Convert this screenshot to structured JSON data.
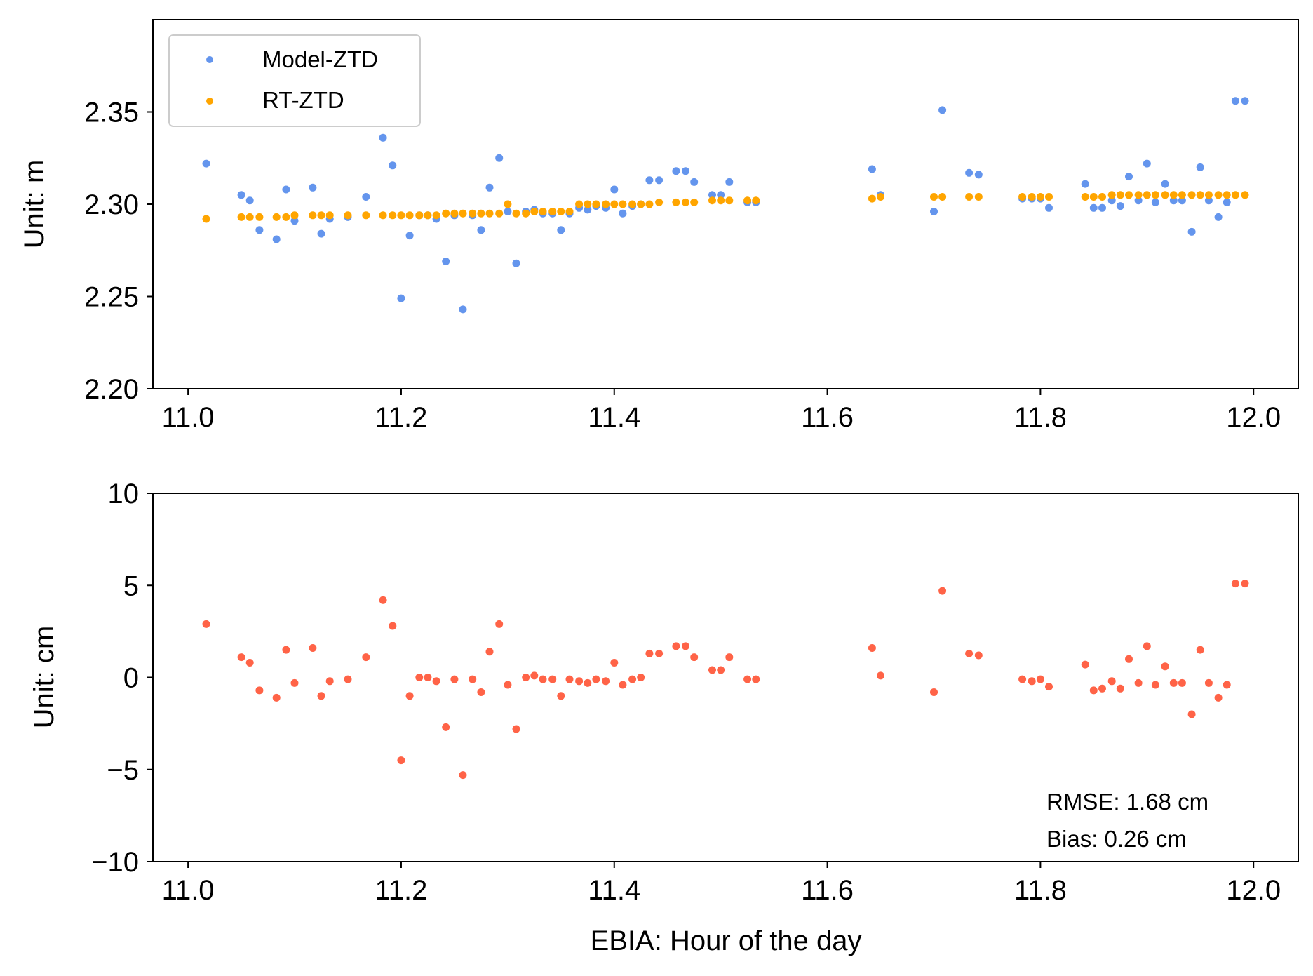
{
  "colors": {
    "model_ztd": "#6495ED",
    "rt_ztd": "#FFA500",
    "residual": "#FF6347",
    "axis": "#000000",
    "legend_border": "#cccccc"
  },
  "chart_data": [
    {
      "type": "scatter",
      "xlabel": "",
      "ylabel": "Unit: m",
      "xlim": [
        10.967,
        12.042
      ],
      "ylim": [
        2.2,
        2.4
      ],
      "x_ticks": [
        11.0,
        11.2,
        11.4,
        11.6,
        11.8,
        12.0
      ],
      "x_tick_labels": [
        "11.0",
        "11.2",
        "11.4",
        "11.6",
        "11.8",
        "12.0"
      ],
      "y_ticks": [
        2.2,
        2.25,
        2.3,
        2.35
      ],
      "y_tick_labels": [
        "2.20",
        "2.25",
        "2.30",
        "2.35"
      ],
      "grid": false,
      "legend": {
        "position": "top-left",
        "entries": [
          "Model-ZTD",
          "RT-ZTD"
        ]
      },
      "series": [
        {
          "name": "Model-ZTD",
          "color": "#6495ED",
          "x": [
            11.017,
            11.05,
            11.058,
            11.067,
            11.083,
            11.092,
            11.1,
            11.117,
            11.125,
            11.133,
            11.15,
            11.167,
            11.183,
            11.192,
            11.2,
            11.208,
            11.217,
            11.225,
            11.233,
            11.242,
            11.25,
            11.258,
            11.267,
            11.275,
            11.283,
            11.292,
            11.3,
            11.308,
            11.317,
            11.325,
            11.333,
            11.342,
            11.35,
            11.358,
            11.367,
            11.375,
            11.383,
            11.392,
            11.4,
            11.408,
            11.417,
            11.425,
            11.433,
            11.442,
            11.458,
            11.467,
            11.475,
            11.492,
            11.5,
            11.508,
            11.525,
            11.533,
            11.642,
            11.65,
            11.7,
            11.708,
            11.733,
            11.742,
            11.783,
            11.792,
            11.8,
            11.808,
            11.842,
            11.85,
            11.858,
            11.867,
            11.875,
            11.883,
            11.892,
            11.9,
            11.908,
            11.917,
            11.925,
            11.933,
            11.942,
            11.95,
            11.958,
            11.967,
            11.975,
            11.983,
            11.992
          ],
          "y": [
            2.322,
            2.305,
            2.302,
            2.286,
            2.281,
            2.308,
            2.291,
            2.309,
            2.284,
            2.292,
            2.293,
            2.304,
            2.336,
            2.321,
            2.249,
            2.283,
            2.294,
            2.294,
            2.292,
            2.269,
            2.294,
            2.243,
            2.294,
            2.286,
            2.309,
            2.325,
            2.296,
            2.268,
            2.296,
            2.297,
            2.295,
            2.295,
            2.286,
            2.295,
            2.298,
            2.297,
            2.299,
            2.298,
            2.308,
            2.295,
            2.299,
            2.3,
            2.313,
            2.313,
            2.318,
            2.318,
            2.312,
            2.305,
            2.305,
            2.312,
            2.301,
            2.301,
            2.319,
            2.305,
            2.296,
            2.351,
            2.317,
            2.316,
            2.303,
            2.303,
            2.303,
            2.298,
            2.311,
            2.298,
            2.298,
            2.302,
            2.299,
            2.315,
            2.302,
            2.322,
            2.301,
            2.311,
            2.302,
            2.302,
            2.285,
            2.32,
            2.302,
            2.293,
            2.301,
            2.356,
            2.356
          ]
        },
        {
          "name": "RT-ZTD",
          "color": "#FFA500",
          "x": [
            11.017,
            11.05,
            11.058,
            11.067,
            11.083,
            11.092,
            11.1,
            11.117,
            11.125,
            11.133,
            11.15,
            11.167,
            11.183,
            11.192,
            11.2,
            11.208,
            11.217,
            11.225,
            11.233,
            11.242,
            11.25,
            11.258,
            11.267,
            11.275,
            11.283,
            11.292,
            11.3,
            11.308,
            11.317,
            11.325,
            11.333,
            11.342,
            11.35,
            11.358,
            11.367,
            11.375,
            11.383,
            11.392,
            11.4,
            11.408,
            11.417,
            11.425,
            11.433,
            11.442,
            11.458,
            11.467,
            11.475,
            11.492,
            11.5,
            11.508,
            11.525,
            11.533,
            11.642,
            11.65,
            11.7,
            11.708,
            11.733,
            11.742,
            11.783,
            11.792,
            11.8,
            11.808,
            11.842,
            11.85,
            11.858,
            11.867,
            11.875,
            11.883,
            11.892,
            11.9,
            11.908,
            11.917,
            11.925,
            11.933,
            11.942,
            11.95,
            11.958,
            11.967,
            11.975,
            11.983,
            11.992
          ],
          "y": [
            2.292,
            2.293,
            2.293,
            2.293,
            2.293,
            2.293,
            2.294,
            2.294,
            2.294,
            2.294,
            2.294,
            2.294,
            2.294,
            2.294,
            2.294,
            2.294,
            2.294,
            2.294,
            2.294,
            2.295,
            2.295,
            2.295,
            2.295,
            2.295,
            2.295,
            2.295,
            2.3,
            2.295,
            2.295,
            2.296,
            2.296,
            2.296,
            2.296,
            2.296,
            2.3,
            2.3,
            2.3,
            2.3,
            2.3,
            2.3,
            2.3,
            2.3,
            2.3,
            2.301,
            2.301,
            2.301,
            2.301,
            2.302,
            2.302,
            2.302,
            2.302,
            2.302,
            2.303,
            2.304,
            2.304,
            2.304,
            2.304,
            2.304,
            2.304,
            2.304,
            2.304,
            2.304,
            2.304,
            2.304,
            2.304,
            2.305,
            2.305,
            2.305,
            2.305,
            2.305,
            2.305,
            2.305,
            2.305,
            2.305,
            2.305,
            2.305,
            2.305,
            2.305,
            2.305,
            2.305,
            2.305
          ]
        }
      ]
    },
    {
      "type": "scatter",
      "xlabel": "EBIA: Hour of the day",
      "ylabel": "Unit: cm",
      "xlim": [
        10.967,
        12.042
      ],
      "ylim": [
        -10,
        10
      ],
      "x_ticks": [
        11.0,
        11.2,
        11.4,
        11.6,
        11.8,
        12.0
      ],
      "x_tick_labels": [
        "11.0",
        "11.2",
        "11.4",
        "11.6",
        "11.8",
        "12.0"
      ],
      "y_ticks": [
        -10,
        -5,
        0,
        5,
        10
      ],
      "y_tick_labels": [
        "−10",
        "−5",
        "0",
        "5",
        "10"
      ],
      "grid": false,
      "annotations": [
        "RMSE: 1.68 cm",
        "Bias: 0.26 cm"
      ],
      "series": [
        {
          "color": "#FF6347",
          "x": [
            11.017,
            11.05,
            11.058,
            11.067,
            11.083,
            11.092,
            11.1,
            11.117,
            11.125,
            11.133,
            11.15,
            11.167,
            11.183,
            11.192,
            11.2,
            11.208,
            11.217,
            11.225,
            11.233,
            11.242,
            11.25,
            11.258,
            11.267,
            11.275,
            11.283,
            11.292,
            11.3,
            11.308,
            11.317,
            11.325,
            11.333,
            11.342,
            11.35,
            11.358,
            11.367,
            11.375,
            11.383,
            11.392,
            11.4,
            11.408,
            11.417,
            11.425,
            11.433,
            11.442,
            11.458,
            11.467,
            11.475,
            11.492,
            11.5,
            11.508,
            11.525,
            11.533,
            11.642,
            11.65,
            11.7,
            11.708,
            11.733,
            11.742,
            11.783,
            11.792,
            11.8,
            11.808,
            11.842,
            11.85,
            11.858,
            11.867,
            11.875,
            11.883,
            11.892,
            11.9,
            11.908,
            11.917,
            11.925,
            11.933,
            11.942,
            11.95,
            11.958,
            11.967,
            11.975,
            11.983,
            11.992
          ],
          "y": [
            2.9,
            1.1,
            0.8,
            -0.7,
            -1.1,
            1.5,
            -0.3,
            1.6,
            -1.0,
            -0.2,
            -0.1,
            1.1,
            4.2,
            2.8,
            -4.5,
            -1.0,
            0.0,
            0.0,
            -0.2,
            -2.7,
            -0.1,
            -5.3,
            -0.1,
            -0.8,
            1.4,
            2.9,
            -0.4,
            -2.8,
            0.0,
            0.1,
            -0.1,
            -0.1,
            -1.0,
            -0.1,
            -0.2,
            -0.3,
            -0.1,
            -0.2,
            0.8,
            -0.4,
            -0.1,
            0.0,
            1.3,
            1.3,
            1.7,
            1.7,
            1.1,
            0.4,
            0.4,
            1.1,
            -0.1,
            -0.1,
            1.6,
            0.1,
            -0.8,
            4.7,
            1.3,
            1.2,
            -0.1,
            -0.2,
            -0.1,
            -0.5,
            0.7,
            -0.7,
            -0.6,
            -0.2,
            -0.6,
            1.0,
            -0.3,
            1.7,
            -0.4,
            0.6,
            -0.3,
            -0.3,
            -2.0,
            1.5,
            -0.3,
            -1.1,
            -0.4,
            5.1,
            5.1
          ]
        }
      ]
    }
  ]
}
